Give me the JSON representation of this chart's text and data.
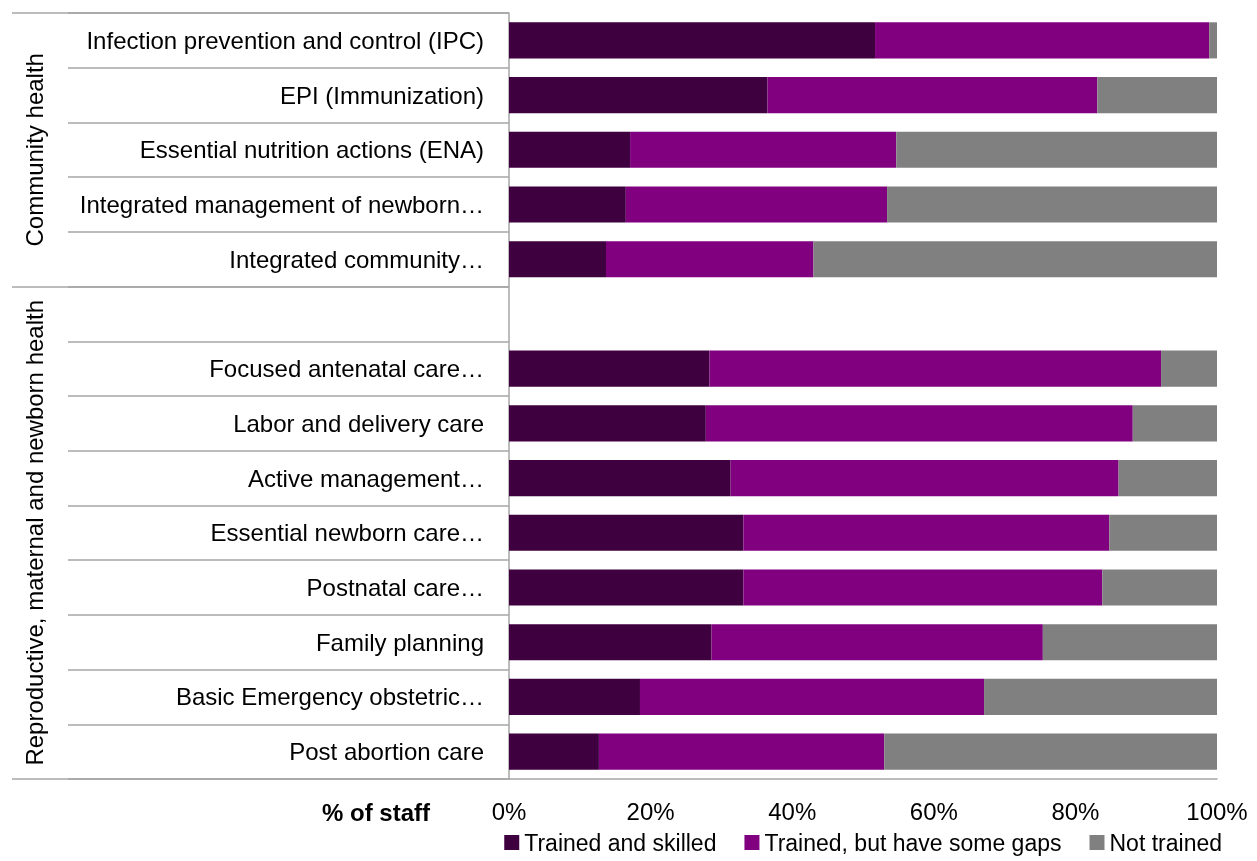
{
  "chart_data": {
    "type": "bar",
    "orientation": "horizontal",
    "stacked": true,
    "categories": [
      "Infection prevention and control (IPC)",
      "EPI (Immunization)",
      "Essential nutrition actions (ENA)",
      "Integrated management of newborn…",
      "Integrated community…",
      null,
      "Focused antenatal care…",
      "Labor and delivery care",
      "Active management…",
      "Essential newborn care…",
      "Postnatal care…",
      "Family planning",
      "Basic Emergency obstetric…",
      "Post abortion care"
    ],
    "series": [
      {
        "name": "Trained and skilled",
        "color": "#3f003f",
        "values": [
          51.7,
          36.5,
          17.1,
          16.5,
          13.7,
          null,
          28.3,
          27.8,
          31.3,
          33.1,
          33.1,
          28.6,
          18.5,
          12.7
        ]
      },
      {
        "name": "Trained, but have some gaps",
        "color": "#800080",
        "values": [
          47.2,
          46.6,
          37.6,
          36.9,
          29.3,
          null,
          63.8,
          60.3,
          54.8,
          51.7,
          50.7,
          46.8,
          48.6,
          40.3
        ]
      },
      {
        "name": "Not trained",
        "color": "#808080",
        "values": [
          1.1,
          16.9,
          45.3,
          46.6,
          57.0,
          null,
          7.9,
          11.9,
          13.9,
          15.2,
          16.2,
          24.6,
          32.9,
          47.0
        ]
      }
    ],
    "xlabel": "% of staff",
    "xlim": [
      0,
      100
    ],
    "xticks": [
      {
        "value": 0,
        "label": "0%"
      },
      {
        "value": 20,
        "label": "20%"
      },
      {
        "value": 40,
        "label": "40%"
      },
      {
        "value": 60,
        "label": "60%"
      },
      {
        "value": 80,
        "label": "80%"
      },
      {
        "value": 100,
        "label": "100%"
      }
    ],
    "annotations": [
      "Community health",
      "Reproductive, maternal and newborn health"
    ],
    "grid": false,
    "legend": "bottom"
  }
}
